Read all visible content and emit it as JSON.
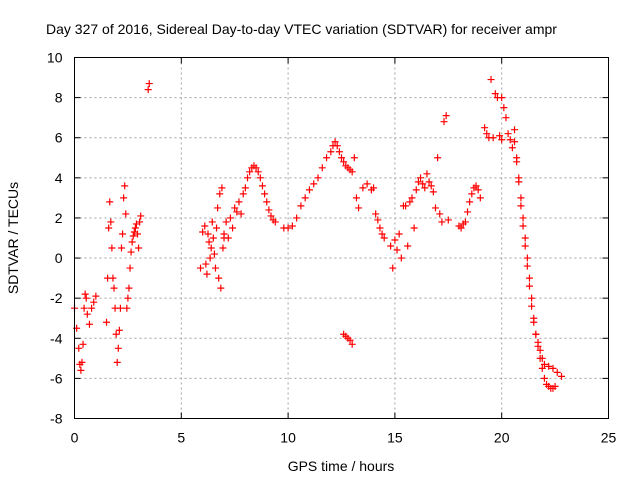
{
  "chart_data": {
    "type": "scatter",
    "title": "Day 327 of 2016, Sidereal Day-to-day VTEC variation (SDTVAR) for receiver ampr",
    "xlabel": "GPS time / hours",
    "ylabel": "SDTVAR / TECUs",
    "xlim": [
      0,
      25
    ],
    "ylim": [
      -8,
      10
    ],
    "x_ticks": [
      0,
      5,
      10,
      15,
      20,
      25
    ],
    "y_ticks": [
      -8,
      -6,
      -4,
      -2,
      0,
      2,
      4,
      6,
      8,
      10
    ],
    "x_tick_labels": [
      "0",
      "5",
      "10",
      "15",
      "20",
      "25"
    ],
    "y_tick_labels": [
      "-8",
      "-6",
      "-4",
      "-2",
      "0",
      "2",
      "4",
      "6",
      "8",
      "10"
    ],
    "grid": true,
    "marker": "+",
    "color": "#ff0000",
    "series": [
      {
        "name": "SDTVAR",
        "segments": [
          {
            "x": [
              0.0,
              0.1,
              0.2,
              0.25,
              0.3,
              0.35,
              0.4,
              0.45,
              0.5,
              0.55
            ],
            "y": [
              -2.5,
              -3.5,
              -4.5,
              -5.3,
              -5.6,
              -5.2,
              -4.3,
              -2.5,
              -1.8,
              -2.0
            ]
          },
          {
            "x": [
              0.6,
              0.7,
              0.8,
              0.9,
              1.0
            ],
            "y": [
              -2.8,
              -3.3,
              -2.5,
              -2.2,
              -1.9
            ]
          },
          {
            "x": [
              1.5,
              1.55,
              1.6,
              1.65,
              1.7,
              1.75,
              1.8,
              1.85,
              1.9,
              1.95,
              2.0,
              2.05,
              2.1,
              2.15,
              2.2,
              2.25,
              2.3,
              2.35,
              2.4,
              2.45,
              2.5,
              2.55,
              2.6,
              2.65,
              2.7,
              2.75,
              2.8,
              2.85,
              2.9,
              2.95,
              3.0,
              3.05,
              3.1
            ],
            "y": [
              -3.2,
              -1.0,
              1.5,
              2.8,
              1.8,
              0.5,
              -1.0,
              -1.5,
              -2.5,
              -3.8,
              -5.2,
              -4.5,
              -3.6,
              -2.5,
              0.5,
              1.2,
              3.0,
              3.6,
              2.2,
              -2.5,
              -2.0,
              -1.5,
              -0.5,
              0.3,
              0.8,
              1.1,
              1.3,
              1.5,
              1.7,
              1.2,
              0.5,
              1.8,
              2.1
            ]
          },
          {
            "x": [
              3.45,
              3.5
            ],
            "y": [
              8.4,
              8.7
            ]
          },
          {
            "x": [
              5.9,
              6.0,
              6.1,
              6.15,
              6.2,
              6.25,
              6.3,
              6.35,
              6.4,
              6.45,
              6.5,
              6.55,
              6.6,
              6.65,
              6.7,
              6.75,
              6.8,
              6.85,
              6.9,
              6.95,
              7.0
            ],
            "y": [
              -0.5,
              1.3,
              1.6,
              -0.3,
              -0.8,
              1.2,
              0.8,
              0.0,
              0.5,
              1.8,
              1.0,
              0.2,
              -0.5,
              1.5,
              2.5,
              -1.0,
              3.2,
              -1.5,
              3.5,
              0.5,
              1.0
            ]
          },
          {
            "x": [
              7.0,
              7.1,
              7.2,
              7.3,
              7.4,
              7.5,
              7.6,
              7.7,
              7.8,
              7.9,
              8.0,
              8.1,
              8.2,
              8.3,
              8.4,
              8.5,
              8.6,
              8.7,
              8.8,
              8.9,
              9.0,
              9.1,
              9.2,
              9.3,
              9.4
            ],
            "y": [
              1.2,
              1.8,
              1.0,
              2.0,
              1.5,
              2.5,
              2.3,
              2.8,
              2.2,
              3.2,
              3.5,
              4.0,
              4.3,
              4.5,
              4.6,
              4.5,
              4.3,
              4.0,
              3.6,
              3.2,
              2.8,
              2.4,
              2.1,
              1.9,
              1.8
            ]
          },
          {
            "x": [
              9.8,
              10.0,
              10.2,
              10.4,
              10.6,
              10.8,
              11.0,
              11.2,
              11.4,
              11.6,
              11.8,
              12.0,
              12.1,
              12.2,
              12.3,
              12.4,
              12.5,
              12.6,
              12.7,
              12.8,
              12.9,
              13.0
            ],
            "y": [
              1.5,
              1.5,
              1.6,
              2.0,
              2.6,
              3.0,
              3.4,
              3.7,
              4.0,
              4.5,
              5.0,
              5.3,
              5.6,
              5.8,
              5.6,
              5.3,
              5.0,
              4.8,
              4.6,
              4.5,
              4.4,
              4.3
            ]
          },
          {
            "x": [
              12.6,
              12.7,
              12.8,
              12.9,
              13.0
            ],
            "y": [
              -3.8,
              -3.9,
              -4.0,
              -4.1,
              -4.3
            ]
          },
          {
            "x": [
              13.1,
              13.2,
              13.3,
              13.5,
              13.7,
              13.9,
              14.0,
              14.1,
              14.2,
              14.3,
              14.4,
              14.5
            ],
            "y": [
              5.0,
              3.0,
              2.5,
              3.5,
              3.7,
              3.4,
              3.5,
              2.2,
              1.9,
              1.5,
              1.2,
              1.0
            ]
          },
          {
            "x": [
              14.8,
              14.9,
              15.0,
              15.1,
              15.2,
              15.3,
              15.4,
              15.5,
              15.6,
              15.7,
              15.8,
              15.9,
              16.0,
              16.1,
              16.2,
              16.3,
              16.4,
              16.5,
              16.6,
              16.7,
              16.8,
              16.9,
              17.0,
              17.1,
              17.2,
              17.3,
              17.4,
              17.5
            ],
            "y": [
              0.6,
              -0.5,
              0.9,
              0.4,
              1.2,
              0.0,
              2.6,
              2.6,
              0.6,
              2.8,
              3.0,
              1.5,
              3.4,
              3.8,
              4.0,
              3.7,
              3.5,
              4.2,
              3.8,
              3.6,
              3.3,
              2.5,
              5.0,
              2.2,
              1.8,
              6.8,
              7.1,
              1.9
            ]
          },
          {
            "x": [
              18.0,
              18.1,
              18.2,
              18.3,
              18.4,
              18.5,
              18.6,
              18.7,
              18.8,
              18.9,
              19.0
            ],
            "y": [
              1.6,
              1.5,
              1.7,
              1.8,
              2.3,
              2.8,
              3.2,
              3.5,
              3.6,
              3.4,
              3.0
            ]
          },
          {
            "x": [
              19.2,
              19.3,
              19.4,
              19.5,
              19.6,
              19.7,
              19.8,
              19.9,
              20.0
            ],
            "y": [
              6.5,
              6.2,
              6.0,
              8.9,
              6.0,
              8.2,
              8.0,
              6.1,
              5.9
            ]
          },
          {
            "x": [
              20.0,
              20.1,
              20.2,
              20.3,
              20.4,
              20.5,
              20.6,
              20.7,
              20.8,
              20.9,
              21.0,
              21.1,
              21.2,
              21.3,
              21.4,
              21.5,
              21.6,
              21.7,
              21.8,
              21.9,
              22.0,
              22.1,
              22.2,
              22.3,
              22.4,
              22.5
            ],
            "y": [
              8.0,
              7.5,
              7.0,
              6.2,
              5.9,
              5.5,
              6.4,
              5.0,
              4.0,
              3.0,
              2.0,
              1.0,
              0.0,
              -1.0,
              -2.0,
              -3.0,
              -3.8,
              -4.4,
              -5.0,
              -5.5,
              -6.0,
              -6.3,
              -6.4,
              -6.5,
              -6.5,
              -6.4
            ]
          },
          {
            "x": [
              20.6,
              20.7,
              20.8,
              20.9,
              21.0,
              21.1,
              21.2,
              21.3,
              21.4,
              21.5,
              21.6,
              21.7,
              21.8,
              21.9,
              22.0,
              22.2,
              22.4,
              22.6,
              22.8
            ],
            "y": [
              5.8,
              4.8,
              3.8,
              2.6,
              1.6,
              0.6,
              -0.4,
              -1.4,
              -2.4,
              -3.2,
              -3.8,
              -4.2,
              -4.6,
              -5.0,
              -5.3,
              -5.4,
              -5.5,
              -5.7,
              -5.9
            ]
          }
        ]
      }
    ]
  }
}
